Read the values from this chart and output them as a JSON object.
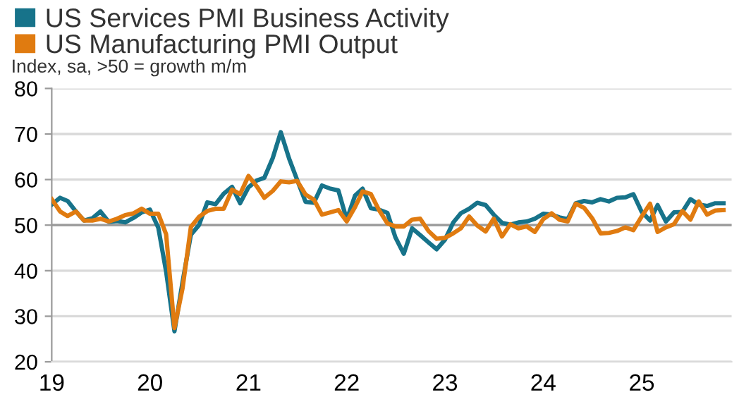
{
  "chart_data": {
    "type": "line",
    "subtitle": "Index, sa, >50 = growth m/m",
    "x": [
      "2019-01",
      "2019-02",
      "2019-03",
      "2019-04",
      "2019-05",
      "2019-06",
      "2019-07",
      "2019-08",
      "2019-09",
      "2019-10",
      "2019-11",
      "2019-12",
      "2020-01",
      "2020-02",
      "2020-03",
      "2020-04",
      "2020-05",
      "2020-06",
      "2020-07",
      "2020-08",
      "2020-09",
      "2020-10",
      "2020-11",
      "2020-12",
      "2021-01",
      "2021-02",
      "2021-03",
      "2021-04",
      "2021-05",
      "2021-06",
      "2021-07",
      "2021-08",
      "2021-09",
      "2021-10",
      "2021-11",
      "2021-12",
      "2022-01",
      "2022-02",
      "2022-03",
      "2022-04",
      "2022-05",
      "2022-06",
      "2022-07",
      "2022-08",
      "2022-09",
      "2022-10",
      "2022-11",
      "2022-12",
      "2023-01",
      "2023-02",
      "2023-03",
      "2023-04",
      "2023-05",
      "2023-06",
      "2023-07",
      "2023-08",
      "2023-09",
      "2023-10",
      "2023-11",
      "2023-12",
      "2024-01",
      "2024-02",
      "2024-03",
      "2024-04",
      "2024-05",
      "2024-06",
      "2024-07",
      "2024-08",
      "2024-09",
      "2024-10",
      "2024-11",
      "2024-12",
      "2025-01",
      "2025-02",
      "2025-03",
      "2025-04",
      "2025-05",
      "2025-06",
      "2025-07",
      "2025-08",
      "2025-09",
      "2025-10",
      "2025-11"
    ],
    "series": [
      {
        "name": "US Services PMI Business Activity",
        "color": "#17738a",
        "values": [
          54.5,
          56,
          55.3,
          53,
          51,
          51.5,
          53,
          50.7,
          50.9,
          50.6,
          51.6,
          52.8,
          53.4,
          49.4,
          39.8,
          26.7,
          37.5,
          47.9,
          50,
          55,
          54.6,
          56.9,
          58.4,
          54.8,
          58.3,
          59.8,
          60.4,
          64.7,
          70.4,
          64.6,
          59.9,
          55.1,
          54.9,
          58.7,
          58,
          57.6,
          51.2,
          56.5,
          58,
          53.7,
          53.4,
          52.7,
          47.3,
          43.7,
          49.3,
          47.8,
          46.2,
          44.7,
          46.8,
          50.6,
          52.6,
          53.6,
          54.9,
          54.4,
          52.3,
          50.5,
          50.1,
          50.6,
          50.8,
          51.4,
          52.5,
          52.3,
          51.7,
          51.3,
          54.8,
          55.3,
          55,
          55.7,
          55.2,
          56,
          56.1,
          56.8,
          52.9,
          51,
          54.4,
          50.8,
          52.8,
          52.9,
          55.7,
          54.5,
          54.2,
          54.8,
          54.8
        ]
      },
      {
        "name": "US Manufacturing PMI Output",
        "color": "#e07b10",
        "values": [
          55.7,
          53,
          52,
          53,
          51,
          51,
          51.4,
          50.8,
          51.4,
          52.2,
          52.6,
          53.6,
          52.5,
          52.5,
          48,
          27.4,
          36.1,
          49.6,
          51.8,
          53.1,
          53.6,
          53.6,
          57.8,
          56.8,
          60.8,
          58.5,
          56,
          57.5,
          59.6,
          59.4,
          59.7,
          56.7,
          55.6,
          52.3,
          52.8,
          53.3,
          50.8,
          54,
          57.4,
          56.8,
          53.3,
          50.4,
          49.7,
          49.7,
          51.2,
          51.4,
          48.7,
          47,
          47.2,
          48.2,
          49.3,
          51.9,
          49.9,
          48.6,
          51.4,
          47.5,
          50.2,
          49.3,
          49.7,
          48.5,
          51.3,
          52.6,
          51.2,
          50.8,
          54.7,
          53.8,
          51.5,
          48.2,
          48.3,
          48.7,
          49.5,
          48.9,
          51.9,
          54.7,
          48.5,
          49.5,
          50.2,
          53.1,
          51.2,
          55.2,
          52.3,
          53.2,
          53.3
        ]
      }
    ],
    "ylim": [
      20,
      80
    ],
    "yticks": [
      20,
      30,
      40,
      50,
      60,
      70,
      80
    ],
    "xlim": [
      "2019-01-01",
      "2025-12-01"
    ],
    "xticks": [
      {
        "value": "2019-01-01",
        "label": "19"
      },
      {
        "value": "2020-01-01",
        "label": "20"
      },
      {
        "value": "2021-01-01",
        "label": "21"
      },
      {
        "value": "2022-01-01",
        "label": "22"
      },
      {
        "value": "2023-01-01",
        "label": "23"
      },
      {
        "value": "2024-01-01",
        "label": "24"
      },
      {
        "value": "2025-01-01",
        "label": "25"
      }
    ],
    "ref_lines": [
      {
        "axis": "y",
        "value": 50,
        "label": null,
        "color": "#9a9a9a"
      }
    ],
    "grid": "y",
    "legend": "top left",
    "marker": "none",
    "line_style": "solid"
  }
}
